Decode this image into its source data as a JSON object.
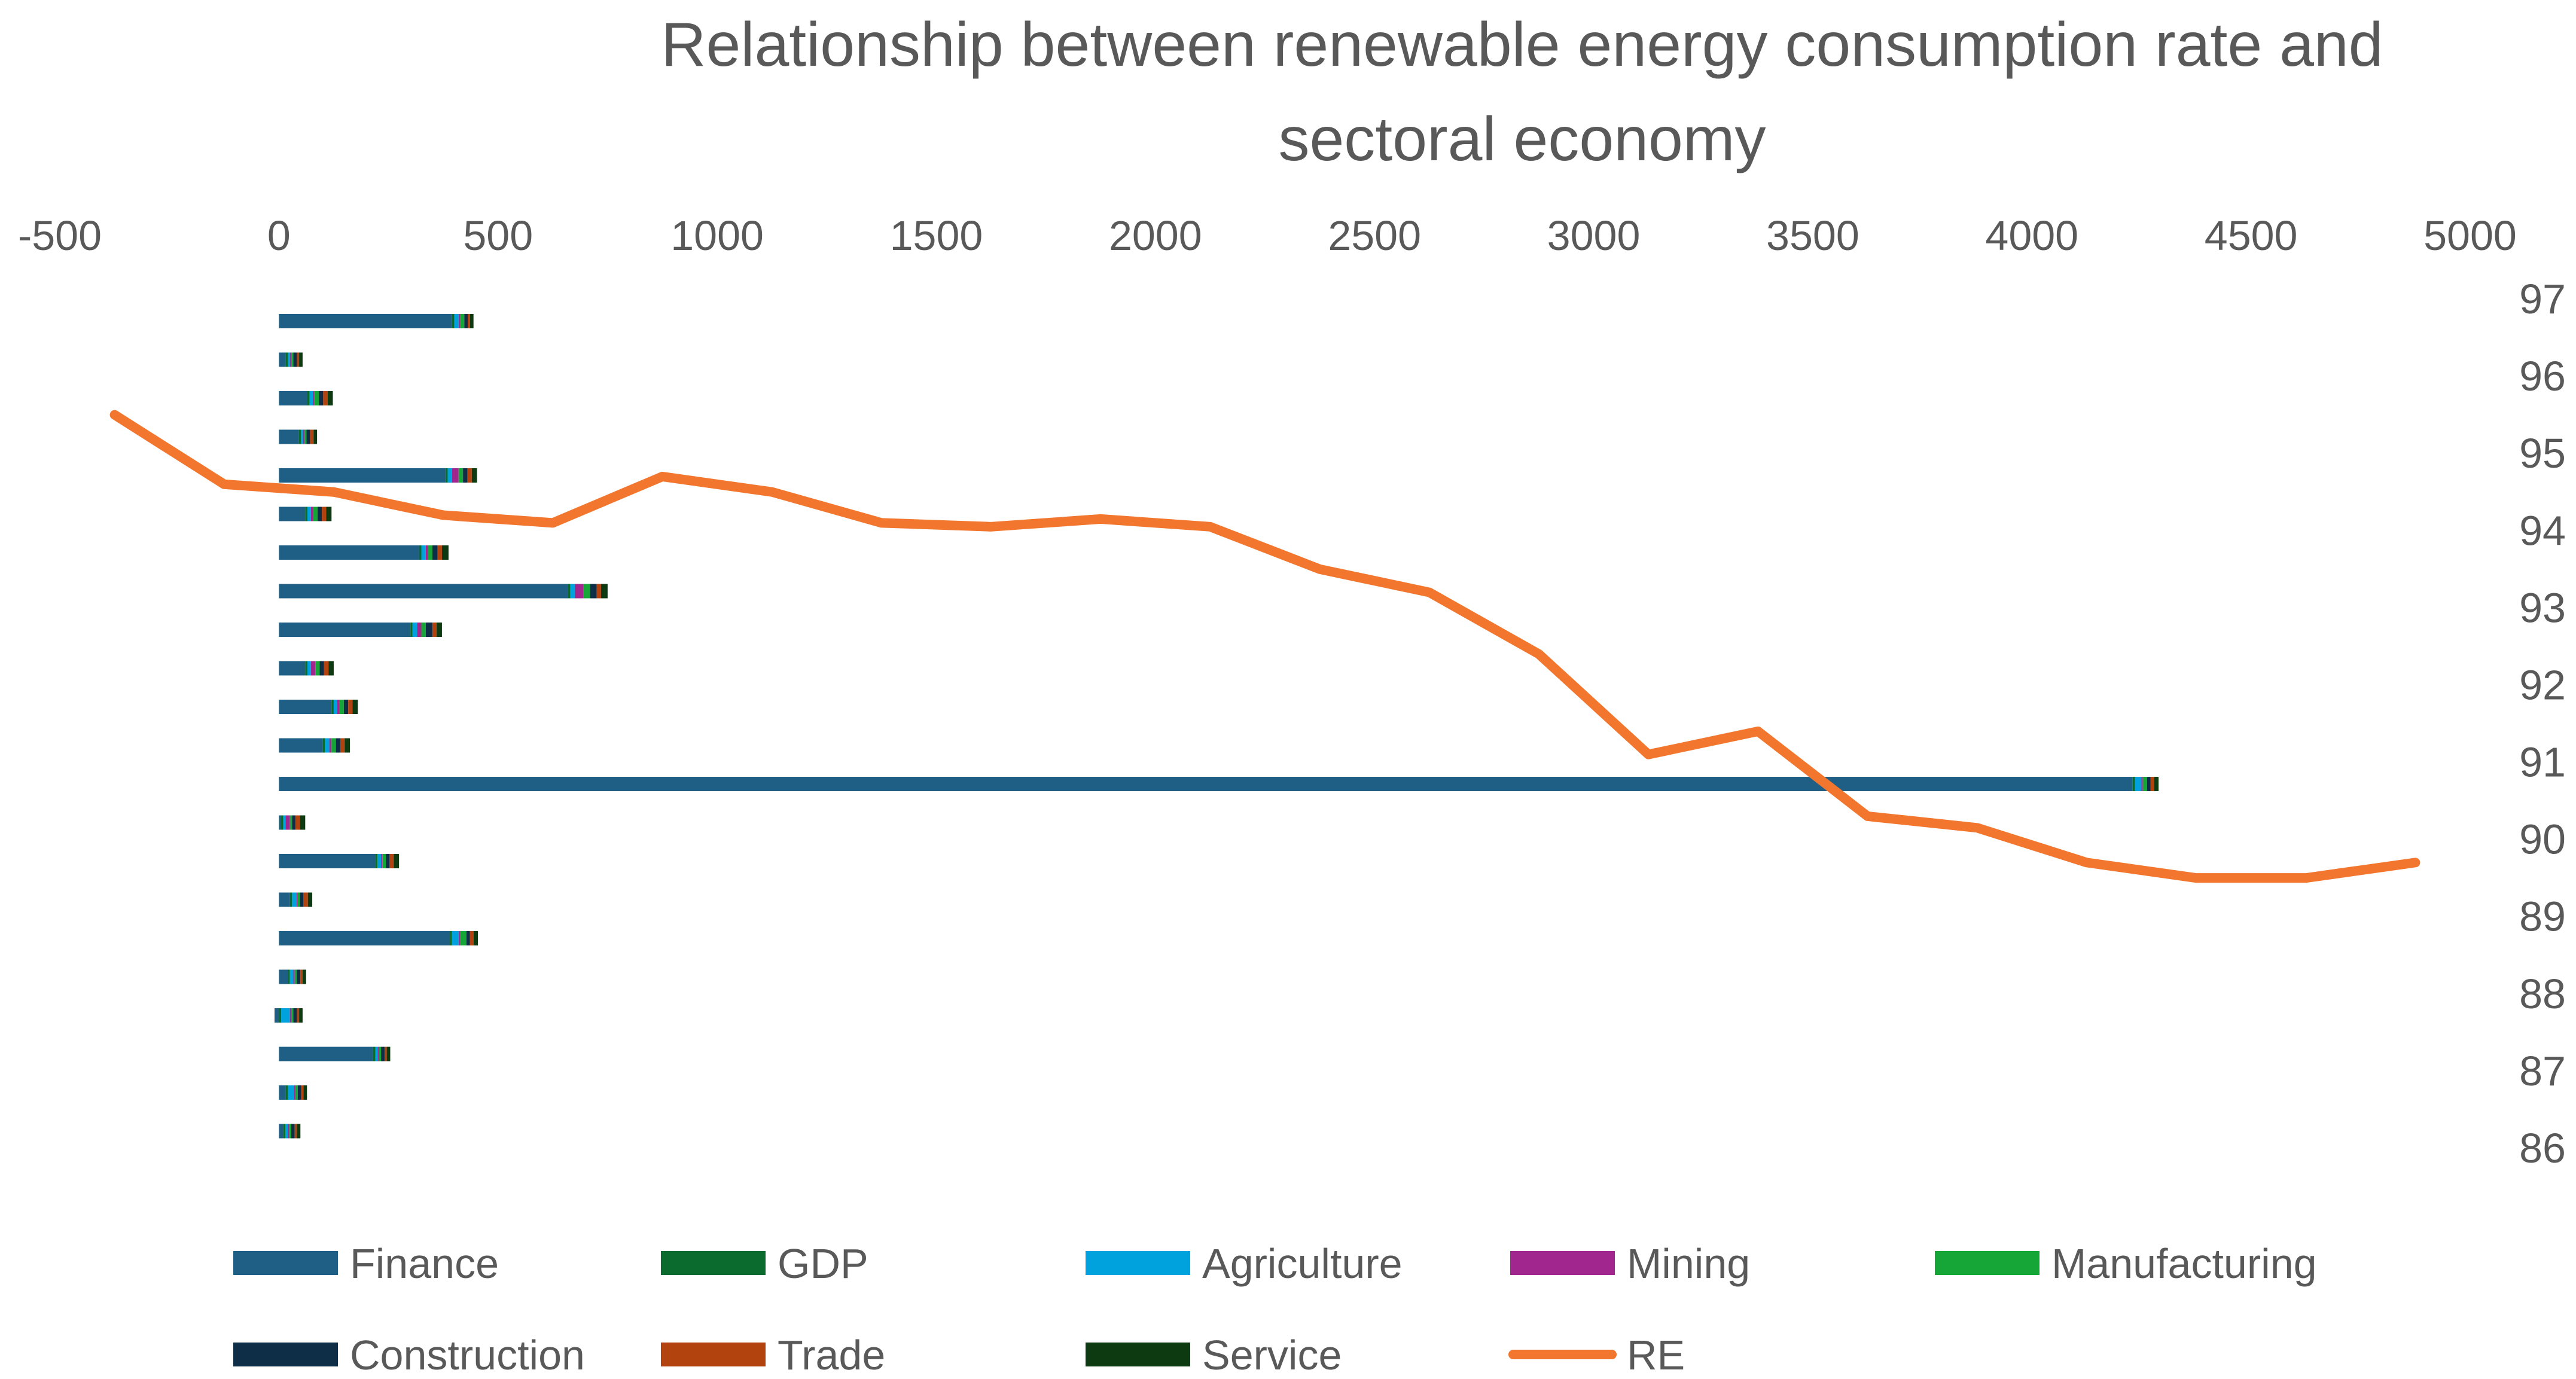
{
  "chart_data": {
    "type": "bar",
    "title_lines": [
      "Relationship between renewable energy consumption rate and",
      "sectoral economy"
    ],
    "x_axis": {
      "ticks": [
        -500,
        0,
        500,
        1000,
        1500,
        2000,
        2500,
        3000,
        3500,
        4000,
        4500,
        5000
      ],
      "labels": [
        "-500",
        "0",
        "500",
        "1000",
        "1500",
        "2000",
        "2500",
        "3000",
        "3500",
        "4000",
        "4500",
        "5000"
      ],
      "range": [
        -500,
        5000
      ]
    },
    "y_axis": {
      "ticks": [
        97,
        96,
        95,
        94,
        93,
        92,
        91,
        90,
        89,
        88,
        87,
        86
      ],
      "labels": [
        "97",
        "96",
        "95",
        "94",
        "93",
        "92",
        "91",
        "90",
        "89",
        "88",
        "87",
        "86"
      ],
      "range": [
        86,
        97
      ]
    },
    "colors": {
      "Finance": "#1f5f86",
      "GDP": "#0b6b2f",
      "Agriculture": "#00a2dd",
      "Mining": "#a1278f",
      "Manufacturing": "#16a637",
      "Construction": "#0d2e46",
      "Trade": "#b2430f",
      "Service": "#0e3a12",
      "RE": "#f2762e"
    },
    "series": [
      {
        "name": "Finance",
        "values": [
          395,
          15,
          65,
          45,
          380,
          60,
          320,
          660,
          300,
          60,
          120,
          100,
          4230,
          5,
          220,
          25,
          390,
          20,
          -10,
          215,
          15,
          10
        ]
      },
      {
        "name": "GDP",
        "values": [
          5,
          5,
          5,
          5,
          5,
          5,
          5,
          5,
          5,
          5,
          5,
          5,
          5,
          5,
          5,
          5,
          5,
          5,
          5,
          5,
          5,
          5
        ]
      },
      {
        "name": "Agriculture",
        "values": [
          10,
          5,
          8,
          5,
          10,
          8,
          10,
          10,
          10,
          8,
          8,
          10,
          15,
          5,
          8,
          10,
          15,
          8,
          20,
          5,
          15,
          5
        ]
      },
      {
        "name": "Mining",
        "values": [
          3,
          3,
          3,
          3,
          15,
          5,
          5,
          20,
          10,
          10,
          5,
          5,
          3,
          10,
          3,
          3,
          3,
          3,
          3,
          3,
          3,
          3
        ]
      },
      {
        "name": "Manufacturing",
        "values": [
          10,
          5,
          10,
          5,
          10,
          10,
          10,
          15,
          10,
          10,
          10,
          10,
          10,
          5,
          8,
          5,
          15,
          5,
          5,
          5,
          5,
          5
        ]
      },
      {
        "name": "Construction",
        "values": [
          8,
          8,
          10,
          8,
          10,
          10,
          12,
          15,
          15,
          10,
          10,
          10,
          8,
          8,
          8,
          8,
          8,
          8,
          8,
          8,
          8,
          8
        ]
      },
      {
        "name": "Trade",
        "values": [
          5,
          5,
          10,
          8,
          10,
          10,
          10,
          10,
          10,
          10,
          10,
          10,
          8,
          10,
          10,
          10,
          8,
          5,
          5,
          5,
          5,
          5
        ]
      },
      {
        "name": "Service",
        "values": [
          8,
          8,
          12,
          8,
          12,
          12,
          15,
          15,
          12,
          12,
          12,
          12,
          10,
          12,
          12,
          10,
          10,
          8,
          8,
          8,
          8,
          8
        ]
      },
      {
        "name": "RE",
        "type": "line",
        "x_positions": [
          -375,
          -125,
          125,
          375,
          625,
          875,
          1125,
          1375,
          1625,
          1875,
          2125,
          2375,
          2625,
          2875,
          3125,
          3375,
          3625,
          3875,
          4125,
          4375,
          4625,
          4875
        ],
        "values": [
          95.5,
          94.6,
          94.5,
          94.2,
          94.1,
          94.7,
          94.5,
          94.1,
          94.05,
          94.15,
          94.05,
          93.5,
          93.2,
          92.4,
          91.1,
          91.4,
          90.3,
          90.15,
          89.7,
          89.5,
          89.5,
          89.7
        ]
      }
    ],
    "legend": [
      "Finance",
      "GDP",
      "Agriculture",
      "Mining",
      "Manufacturing",
      "Construction",
      "Trade",
      "Service",
      "RE"
    ]
  }
}
